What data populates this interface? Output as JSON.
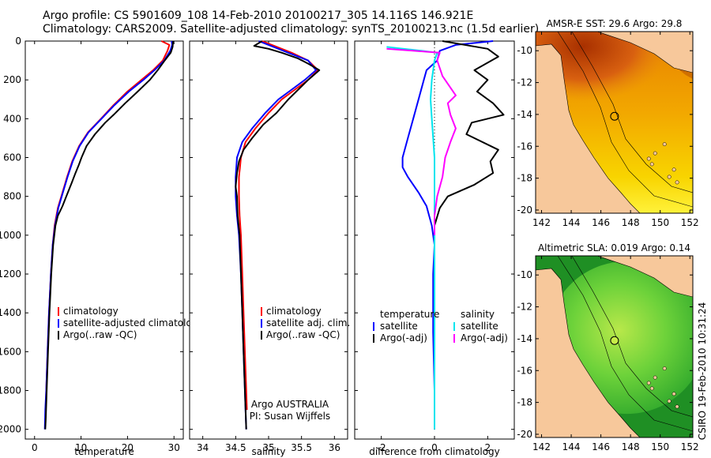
{
  "header": {
    "line1": "Argo profile: CS 5901609_108 14-Feb-2010 20100217_305 14.116S 146.921E",
    "line2": "Climatology: CARS2009. Satellite-adjusted climatology: synTS_20100213.nc (1.5d earlier)"
  },
  "footer": {
    "credit": "CSIRO 19-Feb-2010 10:31:24",
    "argo_org": "Argo AUSTRALIA",
    "pi": "PI: Susan Wijffels"
  },
  "colors": {
    "climatology": "#ff0000",
    "satellite": "#0000ff",
    "argo": "#000000",
    "satellite_diff_sal": "#00e5ee",
    "argo_diff_sal": "#ff00ff",
    "land": "#f7c89b",
    "sst_map": [
      "#8b1a00",
      "#c84000",
      "#e88000",
      "#f4b000",
      "#f8d800",
      "#fff23a"
    ],
    "sla_map": [
      "#006b1a",
      "#159a26",
      "#3cc03a",
      "#86dd3a",
      "#c8ec48"
    ]
  },
  "chart_data": [
    {
      "type": "line",
      "xlabel": "temperature",
      "ylabel": "",
      "xlim": [
        -2,
        32
      ],
      "ylim": [
        2050,
        0
      ],
      "xticks": [
        0,
        10,
        20,
        30
      ],
      "yticks": [
        0,
        200,
        400,
        600,
        800,
        1000,
        1200,
        1400,
        1600,
        1800,
        2000
      ],
      "legend": {
        "position": "lower-right",
        "entries": [
          "climatology",
          "satellite-adjusted climatology",
          "Argo(..raw -QC)"
        ]
      },
      "series": [
        {
          "name": "climatology",
          "color": "#ff0000",
          "points": [
            [
              27.3,
              0
            ],
            [
              29.0,
              20
            ],
            [
              28.6,
              50
            ],
            [
              27.6,
              100
            ],
            [
              25.5,
              150
            ],
            [
              23.0,
              200
            ],
            [
              20.0,
              260
            ],
            [
              17.0,
              330
            ],
            [
              14.3,
              400
            ],
            [
              11.5,
              470
            ],
            [
              9.6,
              540
            ],
            [
              8.1,
              620
            ],
            [
              7.0,
              700
            ],
            [
              6.0,
              780
            ],
            [
              5.0,
              860
            ],
            [
              4.3,
              950
            ],
            [
              3.9,
              1050
            ],
            [
              3.5,
              1200
            ],
            [
              3.1,
              1400
            ],
            [
              2.8,
              1600
            ],
            [
              2.5,
              1800
            ],
            [
              2.4,
              1880
            ]
          ]
        },
        {
          "name": "satellite-adjusted climatology",
          "color": "#0000ff",
          "points": [
            [
              29.5,
              0
            ],
            [
              29.6,
              20
            ],
            [
              29.2,
              50
            ],
            [
              27.9,
              100
            ],
            [
              25.8,
              150
            ],
            [
              23.4,
              200
            ],
            [
              20.3,
              260
            ],
            [
              17.2,
              330
            ],
            [
              14.4,
              400
            ],
            [
              11.6,
              470
            ],
            [
              9.7,
              540
            ],
            [
              8.2,
              620
            ],
            [
              7.1,
              700
            ],
            [
              6.1,
              780
            ],
            [
              5.1,
              860
            ],
            [
              4.4,
              950
            ],
            [
              3.9,
              1050
            ],
            [
              3.5,
              1200
            ],
            [
              3.1,
              1400
            ],
            [
              2.8,
              1600
            ],
            [
              2.5,
              1800
            ],
            [
              2.3,
              1900
            ],
            [
              2.2,
              2000
            ]
          ]
        },
        {
          "name": "Argo(..raw -QC)",
          "color": "#000000",
          "points": [
            [
              29.8,
              0
            ],
            [
              29.7,
              30
            ],
            [
              29.3,
              60
            ],
            [
              28.0,
              100
            ],
            [
              26.5,
              150
            ],
            [
              24.8,
              200
            ],
            [
              22.2,
              260
            ],
            [
              19.5,
              320
            ],
            [
              17.0,
              380
            ],
            [
              15.2,
              420
            ],
            [
              13.0,
              480
            ],
            [
              11.2,
              540
            ],
            [
              10.1,
              600
            ],
            [
              9.5,
              640
            ],
            [
              8.8,
              680
            ],
            [
              8.0,
              730
            ],
            [
              7.0,
              790
            ],
            [
              6.0,
              850
            ],
            [
              5.0,
              900
            ],
            [
              4.5,
              950
            ],
            [
              4.0,
              1050
            ],
            [
              3.6,
              1200
            ],
            [
              3.2,
              1400
            ],
            [
              2.9,
              1600
            ],
            [
              2.6,
              1800
            ],
            [
              2.4,
              1950
            ],
            [
              2.3,
              2000
            ]
          ]
        }
      ]
    },
    {
      "type": "line",
      "xlabel": "salinity",
      "xlim": [
        33.8,
        36.2
      ],
      "ylim": [
        2050,
        0
      ],
      "xticks": [
        34,
        34.5,
        35,
        35.5,
        36
      ],
      "xtick_labels": [
        "34",
        "34.5",
        "35",
        "35.5",
        "36"
      ],
      "legend": {
        "position": "lower-right",
        "entries": [
          "climatology",
          "satellite adj. clim.",
          "Argo(..raw -QC)"
        ]
      },
      "series": [
        {
          "name": "climatology",
          "color": "#ff0000",
          "points": [
            [
              34.9,
              0
            ],
            [
              35.05,
              20
            ],
            [
              35.35,
              60
            ],
            [
              35.6,
              100
            ],
            [
              35.75,
              150
            ],
            [
              35.6,
              200
            ],
            [
              35.4,
              250
            ],
            [
              35.2,
              300
            ],
            [
              35.0,
              370
            ],
            [
              34.8,
              450
            ],
            [
              34.65,
              520
            ],
            [
              34.58,
              600
            ],
            [
              34.55,
              700
            ],
            [
              34.55,
              800
            ],
            [
              34.56,
              900
            ],
            [
              34.58,
              1000
            ],
            [
              34.6,
              1200
            ],
            [
              34.62,
              1400
            ],
            [
              34.64,
              1600
            ],
            [
              34.66,
              1800
            ],
            [
              34.67,
              1900
            ]
          ]
        },
        {
          "name": "satellite adj. clim.",
          "color": "#0000ff",
          "points": [
            [
              34.85,
              0
            ],
            [
              35.0,
              20
            ],
            [
              35.3,
              60
            ],
            [
              35.6,
              100
            ],
            [
              35.72,
              150
            ],
            [
              35.55,
              200
            ],
            [
              35.35,
              250
            ],
            [
              35.15,
              300
            ],
            [
              34.95,
              370
            ],
            [
              34.75,
              450
            ],
            [
              34.6,
              520
            ],
            [
              34.52,
              600
            ],
            [
              34.5,
              700
            ],
            [
              34.5,
              800
            ],
            [
              34.52,
              900
            ],
            [
              34.55,
              1000
            ],
            [
              34.58,
              1200
            ],
            [
              34.6,
              1400
            ],
            [
              34.62,
              1600
            ],
            [
              34.64,
              1800
            ],
            [
              34.65,
              1900
            ],
            [
              34.66,
              2000
            ]
          ]
        },
        {
          "name": "Argo(..raw -QC)",
          "color": "#000000",
          "points": [
            [
              34.9,
              0
            ],
            [
              34.78,
              25
            ],
            [
              35.0,
              40
            ],
            [
              35.2,
              60
            ],
            [
              35.45,
              90
            ],
            [
              35.62,
              120
            ],
            [
              35.77,
              150
            ],
            [
              35.6,
              200
            ],
            [
              35.45,
              250
            ],
            [
              35.3,
              300
            ],
            [
              35.12,
              370
            ],
            [
              34.92,
              430
            ],
            [
              34.75,
              500
            ],
            [
              34.62,
              560
            ],
            [
              34.55,
              620
            ],
            [
              34.52,
              680
            ],
            [
              34.5,
              750
            ],
            [
              34.52,
              800
            ],
            [
              34.53,
              900
            ],
            [
              34.56,
              1000
            ],
            [
              34.58,
              1200
            ],
            [
              34.6,
              1400
            ],
            [
              34.62,
              1600
            ],
            [
              34.64,
              1800
            ],
            [
              34.66,
              2000
            ]
          ]
        }
      ]
    },
    {
      "type": "line",
      "xlabel": "difference from climatology",
      "xlim": [
        -3,
        3
      ],
      "ylim": [
        2050,
        0
      ],
      "xticks": [
        -2,
        0,
        2
      ],
      "legend": {
        "position": "lower",
        "entries": [
          "temperature",
          "satellite",
          "Argo(-adj)",
          "salinity",
          "satellite",
          "Argo(-adj)"
        ]
      },
      "series": [
        {
          "name": "satellite",
          "group": "temperature",
          "color": "#0000ff",
          "points": [
            [
              2.2,
              0
            ],
            [
              0.8,
              20
            ],
            [
              0.2,
              50
            ],
            [
              0.1,
              100
            ],
            [
              -0.3,
              150
            ],
            [
              -0.4,
              200
            ],
            [
              -0.6,
              300
            ],
            [
              -0.8,
              400
            ],
            [
              -1.0,
              500
            ],
            [
              -1.2,
              600
            ],
            [
              -1.2,
              650
            ],
            [
              -1.0,
              700
            ],
            [
              -0.6,
              780
            ],
            [
              -0.3,
              850
            ],
            [
              -0.1,
              950
            ],
            [
              0.0,
              1050
            ],
            [
              -0.05,
              1200
            ],
            [
              -0.05,
              1500
            ],
            [
              0.0,
              1800
            ],
            [
              0.0,
              2000
            ]
          ]
        },
        {
          "name": "Argo(-adj)",
          "group": "temperature",
          "color": "#000000",
          "points": [
            [
              0.3,
              0
            ],
            [
              2.0,
              40
            ],
            [
              2.4,
              80
            ],
            [
              1.5,
              150
            ],
            [
              2.0,
              200
            ],
            [
              1.6,
              260
            ],
            [
              2.2,
              320
            ],
            [
              2.6,
              380
            ],
            [
              1.4,
              420
            ],
            [
              1.2,
              480
            ],
            [
              2.4,
              560
            ],
            [
              2.1,
              620
            ],
            [
              2.2,
              680
            ],
            [
              1.5,
              740
            ],
            [
              0.5,
              800
            ],
            [
              0.2,
              860
            ],
            [
              0.0,
              950
            ],
            [
              0.0,
              1200
            ],
            [
              0.0,
              1500
            ],
            [
              0.0,
              1800
            ],
            [
              0.0,
              2000
            ]
          ]
        },
        {
          "name": "satellite",
          "group": "salinity",
          "color": "#00e5ee",
          "points": [
            [
              -1.8,
              30
            ],
            [
              -0.5,
              50
            ],
            [
              0.1,
              60
            ],
            [
              0.0,
              100
            ],
            [
              -0.1,
              200
            ],
            [
              -0.15,
              300
            ],
            [
              -0.1,
              400
            ],
            [
              -0.05,
              500
            ],
            [
              0.0,
              600
            ],
            [
              0.0,
              700
            ],
            [
              0.0,
              800
            ],
            [
              0.0,
              1000
            ],
            [
              0.0,
              1200
            ],
            [
              0.0,
              1500
            ],
            [
              0.0,
              1800
            ],
            [
              0.0,
              2000
            ]
          ]
        },
        {
          "name": "Argo(-adj)",
          "group": "salinity",
          "color": "#ff00ff",
          "points": [
            [
              -1.8,
              40
            ],
            [
              -0.8,
              50
            ],
            [
              0.2,
              60
            ],
            [
              0.1,
              100
            ],
            [
              0.3,
              180
            ],
            [
              0.8,
              280
            ],
            [
              0.5,
              320
            ],
            [
              0.6,
              380
            ],
            [
              0.8,
              450
            ],
            [
              0.6,
              520
            ],
            [
              0.4,
              600
            ],
            [
              0.3,
              700
            ],
            [
              0.1,
              800
            ],
            [
              0.0,
              900
            ],
            [
              0.0,
              1000
            ]
          ]
        }
      ]
    },
    {
      "type": "heatmap",
      "title": "AMSR-E SST: 29.6 Argo: 29.8",
      "xlim": [
        141.6,
        152.2
      ],
      "ylim": [
        -20.2,
        -8.8
      ],
      "xticks": [
        142,
        144,
        146,
        148,
        150,
        152
      ],
      "yticks": [
        -10,
        -12,
        -14,
        -16,
        -18,
        -20
      ],
      "marker": {
        "lon": 146.921,
        "lat": -14.116,
        "style": "open-circle"
      }
    },
    {
      "type": "heatmap",
      "title": "Altimetric SLA: 0.019 Argo: 0.14",
      "xlim": [
        141.6,
        152.2
      ],
      "ylim": [
        -20.2,
        -8.8
      ],
      "xticks": [
        142,
        144,
        146,
        148,
        150,
        152
      ],
      "yticks": [
        -10,
        -12,
        -14,
        -16,
        -18,
        -20
      ],
      "marker": {
        "lon": 146.921,
        "lat": -14.116,
        "style": "filled-circle"
      }
    }
  ]
}
